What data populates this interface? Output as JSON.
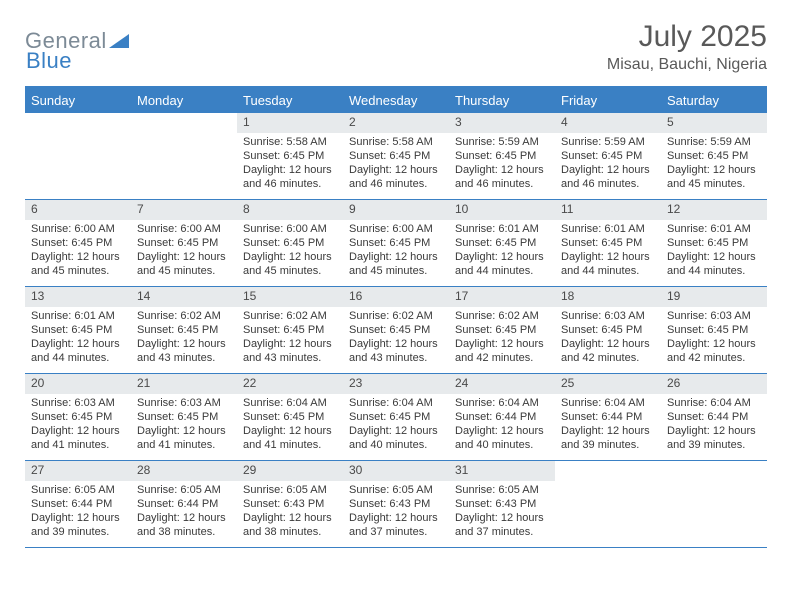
{
  "brand": {
    "part1": "General",
    "part2": "Blue"
  },
  "title": "July 2025",
  "location": "Misau, Bauchi, Nigeria",
  "colors": {
    "accent": "#3a80c4",
    "header_bg": "#3a80c4",
    "daynum_bg": "#e7eaec",
    "text": "#3a3a3a",
    "title_text": "#595959",
    "logo_gray": "#7c8a96"
  },
  "weekdays": [
    "Sunday",
    "Monday",
    "Tuesday",
    "Wednesday",
    "Thursday",
    "Friday",
    "Saturday"
  ],
  "weeks": [
    [
      {
        "n": "",
        "sr": "",
        "ss": "",
        "dl": ""
      },
      {
        "n": "",
        "sr": "",
        "ss": "",
        "dl": ""
      },
      {
        "n": "1",
        "sr": "Sunrise: 5:58 AM",
        "ss": "Sunset: 6:45 PM",
        "dl": "Daylight: 12 hours and 46 minutes."
      },
      {
        "n": "2",
        "sr": "Sunrise: 5:58 AM",
        "ss": "Sunset: 6:45 PM",
        "dl": "Daylight: 12 hours and 46 minutes."
      },
      {
        "n": "3",
        "sr": "Sunrise: 5:59 AM",
        "ss": "Sunset: 6:45 PM",
        "dl": "Daylight: 12 hours and 46 minutes."
      },
      {
        "n": "4",
        "sr": "Sunrise: 5:59 AM",
        "ss": "Sunset: 6:45 PM",
        "dl": "Daylight: 12 hours and 46 minutes."
      },
      {
        "n": "5",
        "sr": "Sunrise: 5:59 AM",
        "ss": "Sunset: 6:45 PM",
        "dl": "Daylight: 12 hours and 45 minutes."
      }
    ],
    [
      {
        "n": "6",
        "sr": "Sunrise: 6:00 AM",
        "ss": "Sunset: 6:45 PM",
        "dl": "Daylight: 12 hours and 45 minutes."
      },
      {
        "n": "7",
        "sr": "Sunrise: 6:00 AM",
        "ss": "Sunset: 6:45 PM",
        "dl": "Daylight: 12 hours and 45 minutes."
      },
      {
        "n": "8",
        "sr": "Sunrise: 6:00 AM",
        "ss": "Sunset: 6:45 PM",
        "dl": "Daylight: 12 hours and 45 minutes."
      },
      {
        "n": "9",
        "sr": "Sunrise: 6:00 AM",
        "ss": "Sunset: 6:45 PM",
        "dl": "Daylight: 12 hours and 45 minutes."
      },
      {
        "n": "10",
        "sr": "Sunrise: 6:01 AM",
        "ss": "Sunset: 6:45 PM",
        "dl": "Daylight: 12 hours and 44 minutes."
      },
      {
        "n": "11",
        "sr": "Sunrise: 6:01 AM",
        "ss": "Sunset: 6:45 PM",
        "dl": "Daylight: 12 hours and 44 minutes."
      },
      {
        "n": "12",
        "sr": "Sunrise: 6:01 AM",
        "ss": "Sunset: 6:45 PM",
        "dl": "Daylight: 12 hours and 44 minutes."
      }
    ],
    [
      {
        "n": "13",
        "sr": "Sunrise: 6:01 AM",
        "ss": "Sunset: 6:45 PM",
        "dl": "Daylight: 12 hours and 44 minutes."
      },
      {
        "n": "14",
        "sr": "Sunrise: 6:02 AM",
        "ss": "Sunset: 6:45 PM",
        "dl": "Daylight: 12 hours and 43 minutes."
      },
      {
        "n": "15",
        "sr": "Sunrise: 6:02 AM",
        "ss": "Sunset: 6:45 PM",
        "dl": "Daylight: 12 hours and 43 minutes."
      },
      {
        "n": "16",
        "sr": "Sunrise: 6:02 AM",
        "ss": "Sunset: 6:45 PM",
        "dl": "Daylight: 12 hours and 43 minutes."
      },
      {
        "n": "17",
        "sr": "Sunrise: 6:02 AM",
        "ss": "Sunset: 6:45 PM",
        "dl": "Daylight: 12 hours and 42 minutes."
      },
      {
        "n": "18",
        "sr": "Sunrise: 6:03 AM",
        "ss": "Sunset: 6:45 PM",
        "dl": "Daylight: 12 hours and 42 minutes."
      },
      {
        "n": "19",
        "sr": "Sunrise: 6:03 AM",
        "ss": "Sunset: 6:45 PM",
        "dl": "Daylight: 12 hours and 42 minutes."
      }
    ],
    [
      {
        "n": "20",
        "sr": "Sunrise: 6:03 AM",
        "ss": "Sunset: 6:45 PM",
        "dl": "Daylight: 12 hours and 41 minutes."
      },
      {
        "n": "21",
        "sr": "Sunrise: 6:03 AM",
        "ss": "Sunset: 6:45 PM",
        "dl": "Daylight: 12 hours and 41 minutes."
      },
      {
        "n": "22",
        "sr": "Sunrise: 6:04 AM",
        "ss": "Sunset: 6:45 PM",
        "dl": "Daylight: 12 hours and 41 minutes."
      },
      {
        "n": "23",
        "sr": "Sunrise: 6:04 AM",
        "ss": "Sunset: 6:45 PM",
        "dl": "Daylight: 12 hours and 40 minutes."
      },
      {
        "n": "24",
        "sr": "Sunrise: 6:04 AM",
        "ss": "Sunset: 6:44 PM",
        "dl": "Daylight: 12 hours and 40 minutes."
      },
      {
        "n": "25",
        "sr": "Sunrise: 6:04 AM",
        "ss": "Sunset: 6:44 PM",
        "dl": "Daylight: 12 hours and 39 minutes."
      },
      {
        "n": "26",
        "sr": "Sunrise: 6:04 AM",
        "ss": "Sunset: 6:44 PM",
        "dl": "Daylight: 12 hours and 39 minutes."
      }
    ],
    [
      {
        "n": "27",
        "sr": "Sunrise: 6:05 AM",
        "ss": "Sunset: 6:44 PM",
        "dl": "Daylight: 12 hours and 39 minutes."
      },
      {
        "n": "28",
        "sr": "Sunrise: 6:05 AM",
        "ss": "Sunset: 6:44 PM",
        "dl": "Daylight: 12 hours and 38 minutes."
      },
      {
        "n": "29",
        "sr": "Sunrise: 6:05 AM",
        "ss": "Sunset: 6:43 PM",
        "dl": "Daylight: 12 hours and 38 minutes."
      },
      {
        "n": "30",
        "sr": "Sunrise: 6:05 AM",
        "ss": "Sunset: 6:43 PM",
        "dl": "Daylight: 12 hours and 37 minutes."
      },
      {
        "n": "31",
        "sr": "Sunrise: 6:05 AM",
        "ss": "Sunset: 6:43 PM",
        "dl": "Daylight: 12 hours and 37 minutes."
      },
      {
        "n": "",
        "sr": "",
        "ss": "",
        "dl": ""
      },
      {
        "n": "",
        "sr": "",
        "ss": "",
        "dl": ""
      }
    ]
  ]
}
